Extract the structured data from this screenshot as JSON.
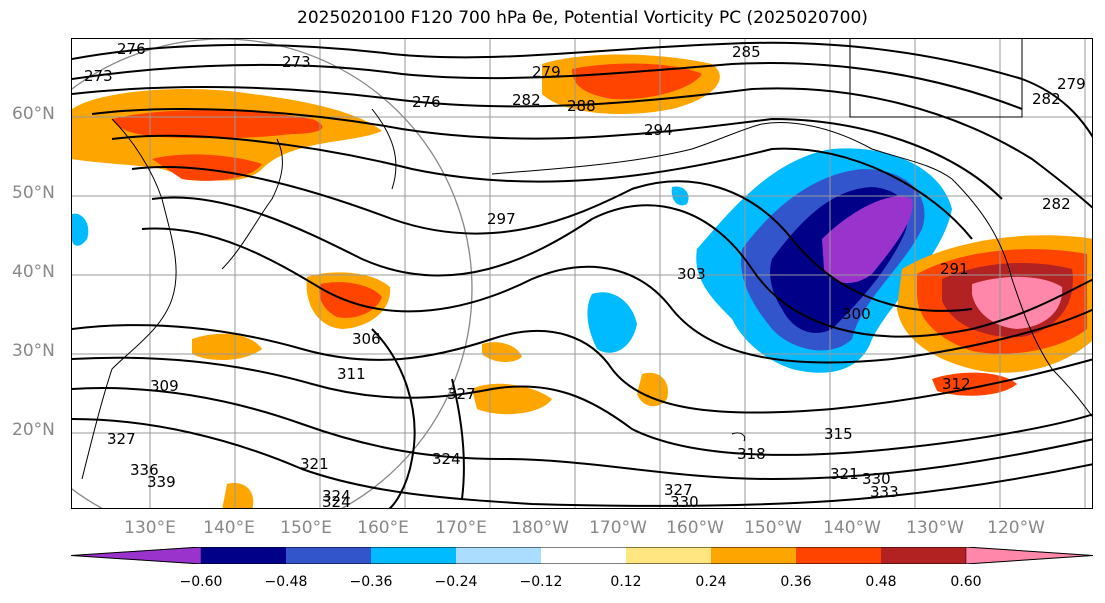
{
  "title": "2025020100 F120 700 hPa θe, Potential Vorticity PC (2025020700)",
  "map": {
    "projection": "equirectangular",
    "region": "North Pacific",
    "colors": {
      "purple": "#9933cc",
      "navy": "#000088",
      "blue": "#3355cc",
      "cyan": "#00bbff",
      "lightblue": "#aaddff",
      "yellow": "#ffe680",
      "orange": "#ffa500",
      "redorange": "#ff4400",
      "darkred": "#b22222",
      "pink": "#ff88aa"
    }
  },
  "lat_labels": [
    "60°N",
    "50°N",
    "40°N",
    "30°N",
    "20°N"
  ],
  "lon_labels": [
    "130°E",
    "140°E",
    "150°E",
    "160°E",
    "170°E",
    "180°W",
    "170°W",
    "160°W",
    "150°W",
    "140°W",
    "130°W",
    "120°W"
  ],
  "contour_labels": [
    "276",
    "273",
    "273",
    "276",
    "279",
    "282",
    "285",
    "288",
    "294",
    "297",
    "303",
    "306",
    "309",
    "311",
    "300",
    "291",
    "282",
    "279",
    "282",
    "312",
    "315",
    "318",
    "321",
    "324",
    "327",
    "327",
    "324",
    "327",
    "330",
    "333",
    "330",
    "336",
    "339",
    "321",
    "324"
  ],
  "colorbar": {
    "colors": [
      "#9933cc",
      "#000088",
      "#3355cc",
      "#00bbff",
      "#aaddff",
      "#ffffff",
      "#ffe680",
      "#ffa500",
      "#ff4400",
      "#b22222",
      "#ff88aa"
    ],
    "ticks": [
      "−0.60",
      "−0.48",
      "−0.36",
      "−0.24",
      "−0.12",
      "0.12",
      "0.24",
      "0.36",
      "0.48",
      "0.60"
    ]
  }
}
